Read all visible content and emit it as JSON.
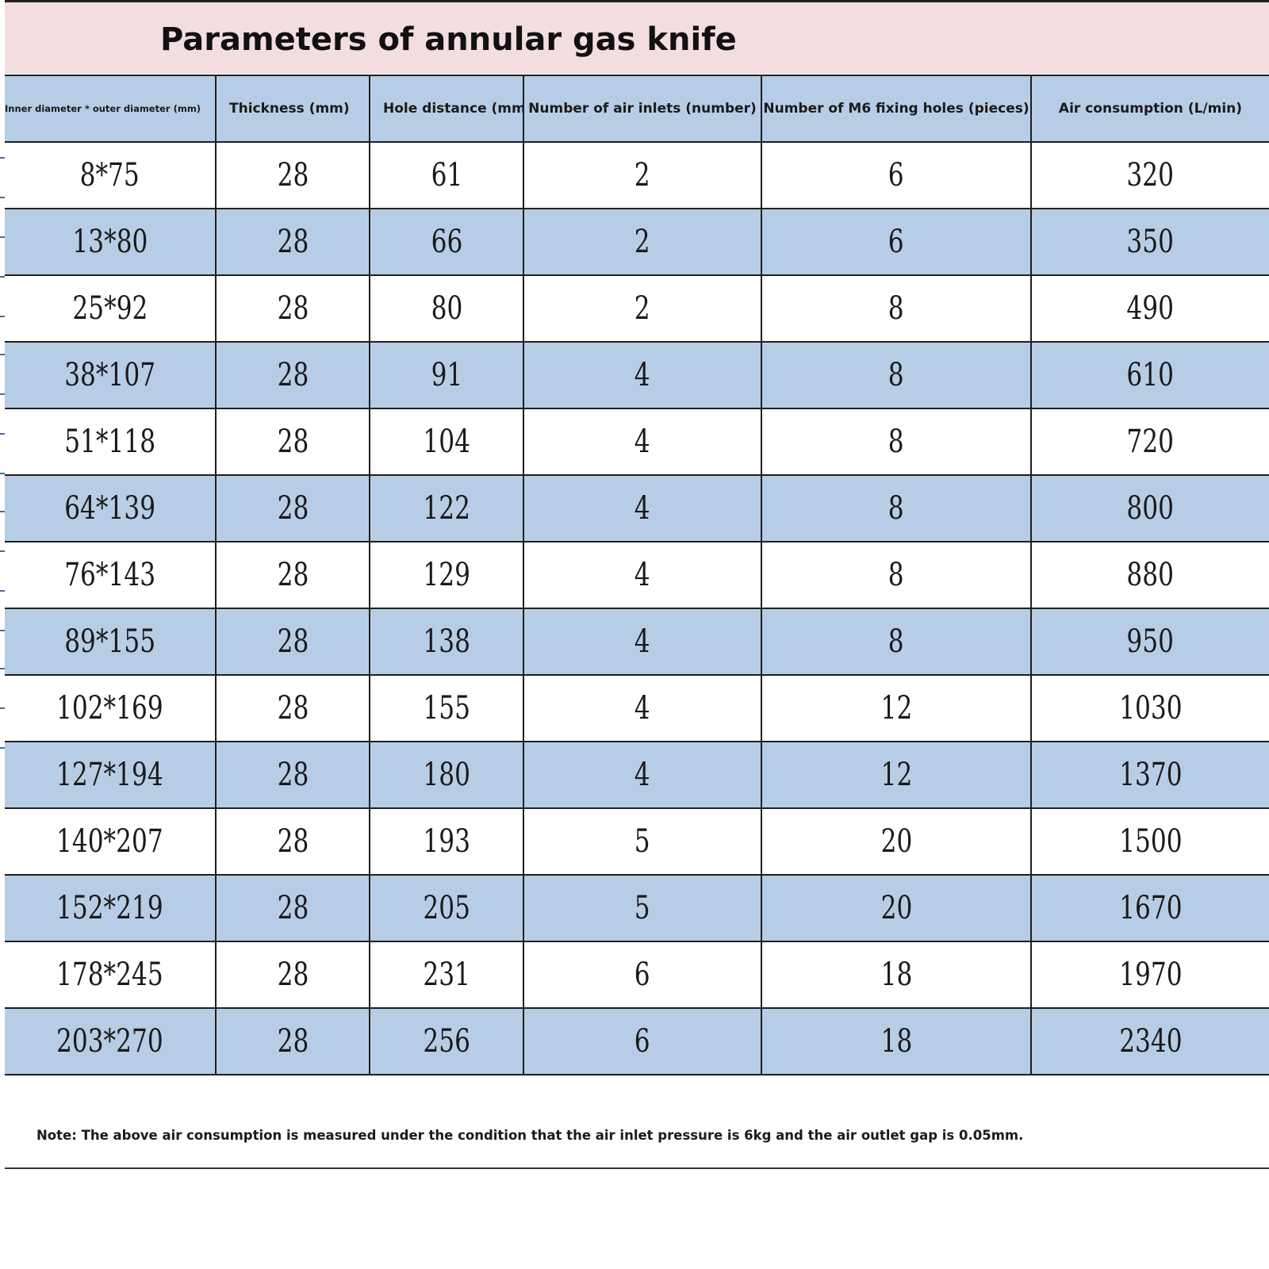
{
  "title": "Parameters of annular gas knife",
  "columns": [
    "Inner diameter * outer diameter (mm)",
    "Thickness (mm)",
    "Hole distance (mm)",
    "Number of air inlets (number)",
    "Number of M6 fixing holes (pieces)",
    "Air consumption (L/min)"
  ],
  "rows": [
    [
      "8*75",
      "28",
      "61",
      "2",
      "6",
      "320"
    ],
    [
      "13*80",
      "28",
      "66",
      "2",
      "6",
      "350"
    ],
    [
      "25*92",
      "28",
      "80",
      "2",
      "8",
      "490"
    ],
    [
      "38*107",
      "28",
      "91",
      "4",
      "8",
      "610"
    ],
    [
      "51*118",
      "28",
      "104",
      "4",
      "8",
      "720"
    ],
    [
      "64*139",
      "28",
      "122",
      "4",
      "8",
      "800"
    ],
    [
      "76*143",
      "28",
      "129",
      "4",
      "8",
      "880"
    ],
    [
      "89*155",
      "28",
      "138",
      "4",
      "8",
      "950"
    ],
    [
      "102*169",
      "28",
      "155",
      "4",
      "12",
      "1030"
    ],
    [
      "127*194",
      "28",
      "180",
      "4",
      "12",
      "1370"
    ],
    [
      "140*207",
      "28",
      "193",
      "5",
      "20",
      "1500"
    ],
    [
      "152*219",
      "28",
      "205",
      "5",
      "20",
      "1670"
    ],
    [
      "178*245",
      "28",
      "231",
      "6",
      "18",
      "1970"
    ],
    [
      "203*270",
      "28",
      "256",
      "6",
      "18",
      "2340"
    ]
  ],
  "note": "Note: The above air consumption is measured under the condition that the air inlet pressure is 6kg and the air outlet gap is 0.05mm.",
  "colors": {
    "title_background": "#f2dde0",
    "header_background": "#b7cde6",
    "alternate_row_background": "#b7cde6",
    "row_background": "#ffffff",
    "grid_lines": "#1f1f1f"
  }
}
